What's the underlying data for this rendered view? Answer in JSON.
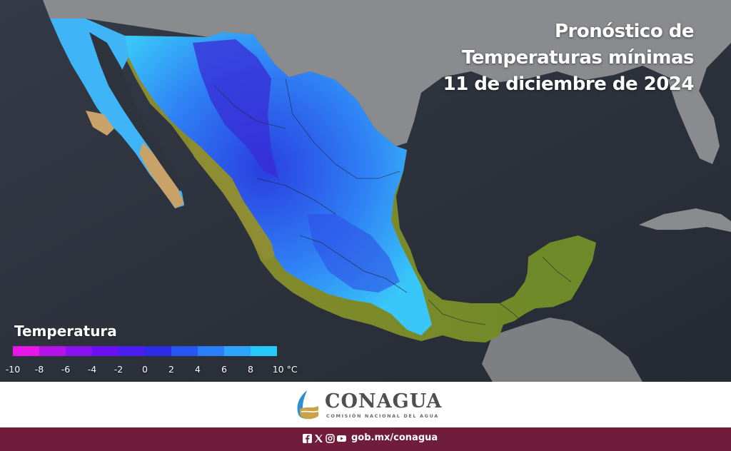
{
  "title": {
    "line1": "Pronóstico de",
    "line2": "Temperaturas mínimas",
    "line3": "11 de diciembre de 2024"
  },
  "legend": {
    "title": "Temperatura",
    "colors": [
      "#e616e6",
      "#b413e8",
      "#8a12ee",
      "#6a10f2",
      "#4a1ef0",
      "#2e2be6",
      "#2556f0",
      "#2a7ef8",
      "#2ea3ff",
      "#27c9fb"
    ],
    "ticks": [
      "-10",
      "-8",
      "-6",
      "-4",
      "-2",
      "0",
      "2",
      "4",
      "6",
      "8",
      "10 °C"
    ]
  },
  "logo": {
    "name": "CONAGUA",
    "subtitle": "COMISIÓN NACIONAL DEL AGUA"
  },
  "footer": {
    "social_icons": [
      "facebook-icon",
      "x-icon",
      "instagram-icon",
      "youtube-icon"
    ],
    "url": "gob.mx/conagua"
  },
  "colors": {
    "ocean": "#2a2f3a",
    "land_gray": "#7a7b7e",
    "tropical_land": "#7b8a2a",
    "footer_band": "#6f1d3a"
  }
}
